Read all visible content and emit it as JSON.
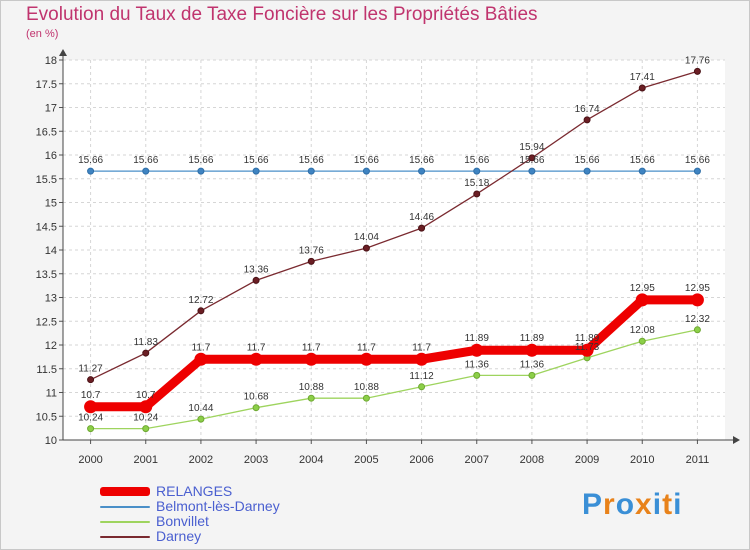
{
  "title": "Evolution du Taux de Taxe Foncière sur les Propriétés Bâties",
  "subtitle": "(en %)",
  "logo": {
    "text": "Proxiti",
    "letter_colors": [
      "#3a8fd6",
      "#e8821a",
      "#3a8fd6",
      "#e8821a",
      "#3a8fd6",
      "#e8821a",
      "#3a8fd6"
    ]
  },
  "chart_data": {
    "type": "line",
    "title": "Evolution du Taux de Taxe Foncière sur les Propriétés Bâties",
    "ylabel": "(en %)",
    "xlabel": "",
    "x": [
      "2000",
      "2001",
      "2002",
      "2003",
      "2004",
      "2005",
      "2006",
      "2007",
      "2008",
      "2009",
      "2010",
      "2011"
    ],
    "ylim": [
      10,
      18
    ],
    "yticks": [
      "10",
      "10.5",
      "11",
      "11.5",
      "12",
      "12.5",
      "13",
      "13.5",
      "14",
      "14.5",
      "15",
      "15.5",
      "16",
      "16.5",
      "17",
      "17.5",
      "18"
    ],
    "grid": true,
    "legend_position": "bottom-left",
    "series": [
      {
        "name": "RELANGES",
        "color": "#ee0000",
        "values": [
          10.7,
          10.7,
          11.7,
          11.7,
          11.7,
          11.7,
          11.7,
          11.89,
          11.89,
          11.89,
          12.95,
          12.95
        ],
        "labels": [
          "10.7",
          "10.7",
          "11.7",
          "11.7",
          "11.7",
          "11.7",
          "11.7",
          "11.89",
          "11.89",
          "11.89",
          "12.95",
          "12.95"
        ]
      },
      {
        "name": "Belmont-lès-Darney",
        "color": "#4a8fc8",
        "values": [
          15.66,
          15.66,
          15.66,
          15.66,
          15.66,
          15.66,
          15.66,
          15.66,
          15.66,
          15.66,
          15.66,
          15.66
        ],
        "labels": [
          "15.66",
          "15.66",
          "15.66",
          "15.66",
          "15.66",
          "15.66",
          "15.66",
          "15.66",
          "15.66",
          "15.66",
          "15.66",
          "15.66"
        ]
      },
      {
        "name": "Bonvillet",
        "color": "#9ed45e",
        "values": [
          10.24,
          10.24,
          10.44,
          10.68,
          10.88,
          10.88,
          11.12,
          11.36,
          11.36,
          11.73,
          12.08,
          12.32
        ],
        "labels": [
          "10.24",
          "10.24",
          "10.44",
          "10.68",
          "10.88",
          "10.88",
          "11.12",
          "11.36",
          "11.36",
          "11.73",
          "12.08",
          "12.32"
        ]
      },
      {
        "name": "Darney",
        "color": "#7a2a30",
        "values": [
          11.27,
          11.83,
          12.72,
          13.36,
          13.76,
          14.04,
          14.46,
          15.18,
          15.94,
          16.74,
          17.41,
          17.76
        ],
        "labels": [
          "11.27",
          "11.83",
          "12.72",
          "13.36",
          "13.76",
          "14.04",
          "14.46",
          "15.18",
          "15.94",
          "16.74",
          "17.41",
          "17.76"
        ]
      }
    ]
  }
}
